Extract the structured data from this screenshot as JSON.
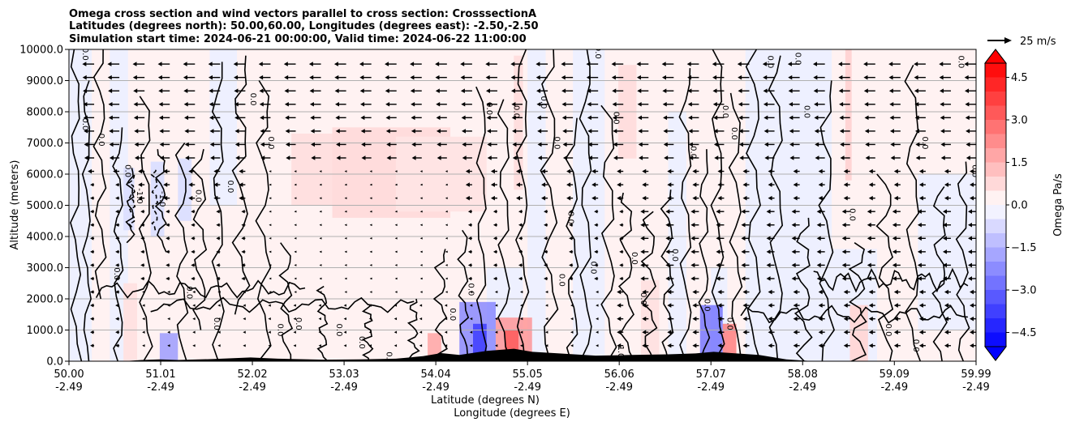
{
  "chart_data": {
    "type": "heatmap",
    "title_lines": [
      "Omega cross section and wind vectors parallel to cross section: CrosssectionA",
      "Latitudes (degrees north): 50.00,60.00, Longitudes (degrees east): -2.50,-2.50",
      "Simulation start time: 2024-06-21 00:00:00, Valid time: 2024-06-22 11:00:00"
    ],
    "ylabel": "Altitude (meters)",
    "xlabel_lat": "Latitude (degrees N)",
    "xlabel_lon": "Longitude (degrees E)",
    "ylim": [
      0,
      10000
    ],
    "y_ticks": [
      "0.0",
      "1000.0",
      "2000.0",
      "3000.0",
      "4000.0",
      "5000.0",
      "6000.0",
      "7000.0",
      "8000.0",
      "9000.0",
      "10000.0"
    ],
    "x_range": [
      50.0,
      59.99
    ],
    "x_ticks": [
      {
        "lat": "50.00",
        "lon": "-2.49"
      },
      {
        "lat": "51.01",
        "lon": "-2.49"
      },
      {
        "lat": "52.02",
        "lon": "-2.49"
      },
      {
        "lat": "53.03",
        "lon": "-2.49"
      },
      {
        "lat": "54.04",
        "lon": "-2.49"
      },
      {
        "lat": "55.05",
        "lon": "-2.49"
      },
      {
        "lat": "56.06",
        "lon": "-2.49"
      },
      {
        "lat": "57.07",
        "lon": "-2.49"
      },
      {
        "lat": "58.08",
        "lon": "-2.49"
      },
      {
        "lat": "59.09",
        "lon": "-2.49"
      },
      {
        "lat": "59.99",
        "lon": "-2.49"
      }
    ],
    "colorbar": {
      "label": "Omega Pa/s",
      "range": [
        -5.0,
        5.0
      ],
      "tick_labels": [
        "4.5",
        "3.0",
        "1.5",
        "0.0",
        "−1.5",
        "−3.0",
        "−4.5"
      ],
      "tick_values": [
        4.5,
        3.0,
        1.5,
        0.0,
        -1.5,
        -3.0,
        -4.5
      ],
      "levels": 20,
      "extend": "both"
    },
    "quiver_key": {
      "label": "25 m/s",
      "value": 25
    },
    "contour_labels": [
      {
        "text": "0.0",
        "lat": 50.15,
        "alt": 9850
      },
      {
        "text": "0.0",
        "lat": 50.15,
        "alt": 7600
      },
      {
        "text": "0.0",
        "lat": 50.33,
        "alt": 7100
      },
      {
        "text": "0.0",
        "lat": 50.62,
        "alt": 6100
      },
      {
        "text": "-1.0",
        "lat": 50.75,
        "alt": 5300
      },
      {
        "text": "-1.0",
        "lat": 51.0,
        "alt": 5200
      },
      {
        "text": "0.0",
        "lat": 51.4,
        "alt": 5300
      },
      {
        "text": "0.0",
        "lat": 51.75,
        "alt": 5600
      },
      {
        "text": "0.0",
        "lat": 52.0,
        "alt": 8400
      },
      {
        "text": "0.0",
        "lat": 52.2,
        "alt": 7000
      },
      {
        "text": "0.0",
        "lat": 50.5,
        "alt": 2800
      },
      {
        "text": "0.0",
        "lat": 51.3,
        "alt": 2200
      },
      {
        "text": "0.0",
        "lat": 51.6,
        "alt": 1200
      },
      {
        "text": "0.0",
        "lat": 52.3,
        "alt": 1000
      },
      {
        "text": "0.0",
        "lat": 52.5,
        "alt": 1200
      },
      {
        "text": "0.0",
        "lat": 52.95,
        "alt": 1000
      },
      {
        "text": "0.0",
        "lat": 53.2,
        "alt": 600
      },
      {
        "text": "0.0",
        "lat": 53.5,
        "alt": 100
      },
      {
        "text": "0.0",
        "lat": 54.2,
        "alt": 1500
      },
      {
        "text": "0.0",
        "lat": 54.4,
        "alt": 2300
      },
      {
        "text": "0.0",
        "lat": 54.6,
        "alt": 8100
      },
      {
        "text": "0.0",
        "lat": 54.9,
        "alt": 8000
      },
      {
        "text": "0.0",
        "lat": 55.2,
        "alt": 8300
      },
      {
        "text": "0.0",
        "lat": 55.35,
        "alt": 7000
      },
      {
        "text": "0.0",
        "lat": 55.5,
        "alt": 4600
      },
      {
        "text": "0.0",
        "lat": 55.75,
        "alt": 3000
      },
      {
        "text": "0.0",
        "lat": 55.4,
        "alt": 2600
      },
      {
        "text": "0.0",
        "lat": 55.8,
        "alt": 9900
      },
      {
        "text": "0.0",
        "lat": 56.0,
        "alt": 7800
      },
      {
        "text": "0.0",
        "lat": 56.2,
        "alt": 3300
      },
      {
        "text": "0.0",
        "lat": 56.3,
        "alt": 2000
      },
      {
        "text": "1.0",
        "lat": 56.05,
        "alt": 300
      },
      {
        "text": "0.0",
        "lat": 56.65,
        "alt": 3400
      },
      {
        "text": "0.0",
        "lat": 56.85,
        "alt": 6700
      },
      {
        "text": "0.0",
        "lat": 57.2,
        "alt": 8000
      },
      {
        "text": "0.0",
        "lat": 57.3,
        "alt": 7300
      },
      {
        "text": "0.0",
        "lat": 57.0,
        "alt": 1800
      },
      {
        "text": "0.0",
        "lat": 57.25,
        "alt": 1200
      },
      {
        "text": "0.0",
        "lat": 57.7,
        "alt": 9600
      },
      {
        "text": "0.0",
        "lat": 58.0,
        "alt": 9700
      },
      {
        "text": "0.0",
        "lat": 58.1,
        "alt": 8000
      },
      {
        "text": "0.0",
        "lat": 58.6,
        "alt": 4700
      },
      {
        "text": "0.0",
        "lat": 59.0,
        "alt": 1000
      },
      {
        "text": "0.0",
        "lat": 59.3,
        "alt": 500
      },
      {
        "text": "0.0",
        "lat": 59.4,
        "alt": 7000
      },
      {
        "text": "0.0",
        "lat": 59.8,
        "alt": 9600
      },
      {
        "text": "0.0",
        "lat": 59.95,
        "alt": 6100
      }
    ]
  }
}
